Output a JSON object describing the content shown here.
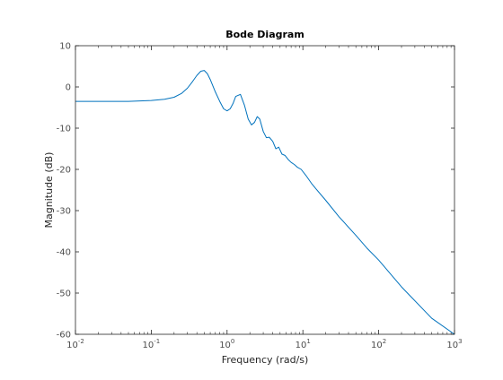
{
  "chart_data": {
    "type": "line",
    "title": "Bode Diagram",
    "xlabel": "Frequency  (rad/s)",
    "ylabel": "Magnitude (dB)",
    "xscale": "log",
    "xlim": [
      0.01,
      1000
    ],
    "ylim": [
      -60,
      10
    ],
    "grid": false,
    "x_ticks": [
      0.01,
      0.1,
      1,
      10,
      100,
      1000
    ],
    "x_tick_labels": [
      {
        "base": "10",
        "exp": "-2"
      },
      {
        "base": "10",
        "exp": "-1"
      },
      {
        "base": "10",
        "exp": "0"
      },
      {
        "base": "10",
        "exp": "1"
      },
      {
        "base": "10",
        "exp": "2"
      },
      {
        "base": "10",
        "exp": "3"
      }
    ],
    "y_ticks": [
      10,
      0,
      -10,
      -20,
      -30,
      -40,
      -50,
      -60
    ],
    "y_tick_labels": [
      "10",
      "0",
      "-10",
      "-20",
      "-30",
      "-40",
      "-50",
      "-60"
    ],
    "series": [
      {
        "color": "#0072bd",
        "x": [
          0.01,
          0.02,
          0.05,
          0.1,
          0.15,
          0.2,
          0.25,
          0.3,
          0.35,
          0.4,
          0.45,
          0.5,
          0.55,
          0.6,
          0.7,
          0.8,
          0.9,
          1.0,
          1.1,
          1.2,
          1.3,
          1.5,
          1.7,
          1.9,
          2.1,
          2.3,
          2.5,
          2.7,
          3.0,
          3.3,
          3.6,
          4.0,
          4.4,
          4.8,
          5.3,
          5.8,
          6.4,
          7.0,
          7.7,
          8.5,
          9.5,
          11,
          13,
          15,
          20,
          30,
          50,
          70,
          100,
          200,
          500,
          1000
        ],
        "y": [
          -3.5,
          -3.5,
          -3.5,
          -3.3,
          -3.0,
          -2.5,
          -1.6,
          -0.3,
          1.3,
          2.8,
          3.8,
          4.0,
          3.2,
          1.8,
          -1.2,
          -3.5,
          -5.3,
          -5.8,
          -5.3,
          -4.0,
          -2.3,
          -1.8,
          -4.5,
          -7.8,
          -9.2,
          -8.6,
          -7.2,
          -7.8,
          -10.8,
          -12.3,
          -12.2,
          -13.2,
          -15.0,
          -14.6,
          -16.3,
          -16.6,
          -17.6,
          -18.3,
          -18.8,
          -19.5,
          -20.0,
          -21.5,
          -23.4,
          -24.8,
          -27.5,
          -31.5,
          -36.0,
          -39.1,
          -42.0,
          -48.5,
          -56.1,
          -60.0
        ]
      }
    ]
  }
}
